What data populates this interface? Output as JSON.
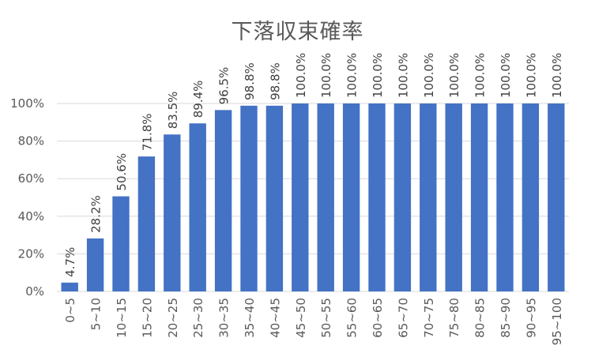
{
  "chart_data": {
    "type": "bar",
    "title": "下落収束確率",
    "xlabel": "",
    "ylabel": "",
    "ylim": [
      0,
      100
    ],
    "y_ticks": [
      "0%",
      "20%",
      "40%",
      "60%",
      "80%",
      "100%"
    ],
    "grid": true,
    "bar_color": "#4472C4",
    "grid_color": "#D9D9D9",
    "categories": [
      "0~5",
      "5~10",
      "10~15",
      "15~20",
      "20~25",
      "25~30",
      "30~35",
      "35~40",
      "40~45",
      "45~50",
      "50~55",
      "55~60",
      "60~65",
      "65~70",
      "70~75",
      "75~80",
      "80~85",
      "85~90",
      "90~95",
      "95~100"
    ],
    "values": [
      4.7,
      28.2,
      50.6,
      71.8,
      83.5,
      89.4,
      96.5,
      98.8,
      98.8,
      100.0,
      100.0,
      100.0,
      100.0,
      100.0,
      100.0,
      100.0,
      100.0,
      100.0,
      100.0,
      100.0
    ],
    "data_labels": [
      "4.7%",
      "28.2%",
      "50.6%",
      "71.8%",
      "83.5%",
      "89.4%",
      "96.5%",
      "98.8%",
      "98.8%",
      "100.0%",
      "100.0%",
      "100.0%",
      "100.0%",
      "100.0%",
      "100.0%",
      "100.0%",
      "100.0%",
      "100.0%",
      "100.0%",
      "100.0%"
    ]
  }
}
